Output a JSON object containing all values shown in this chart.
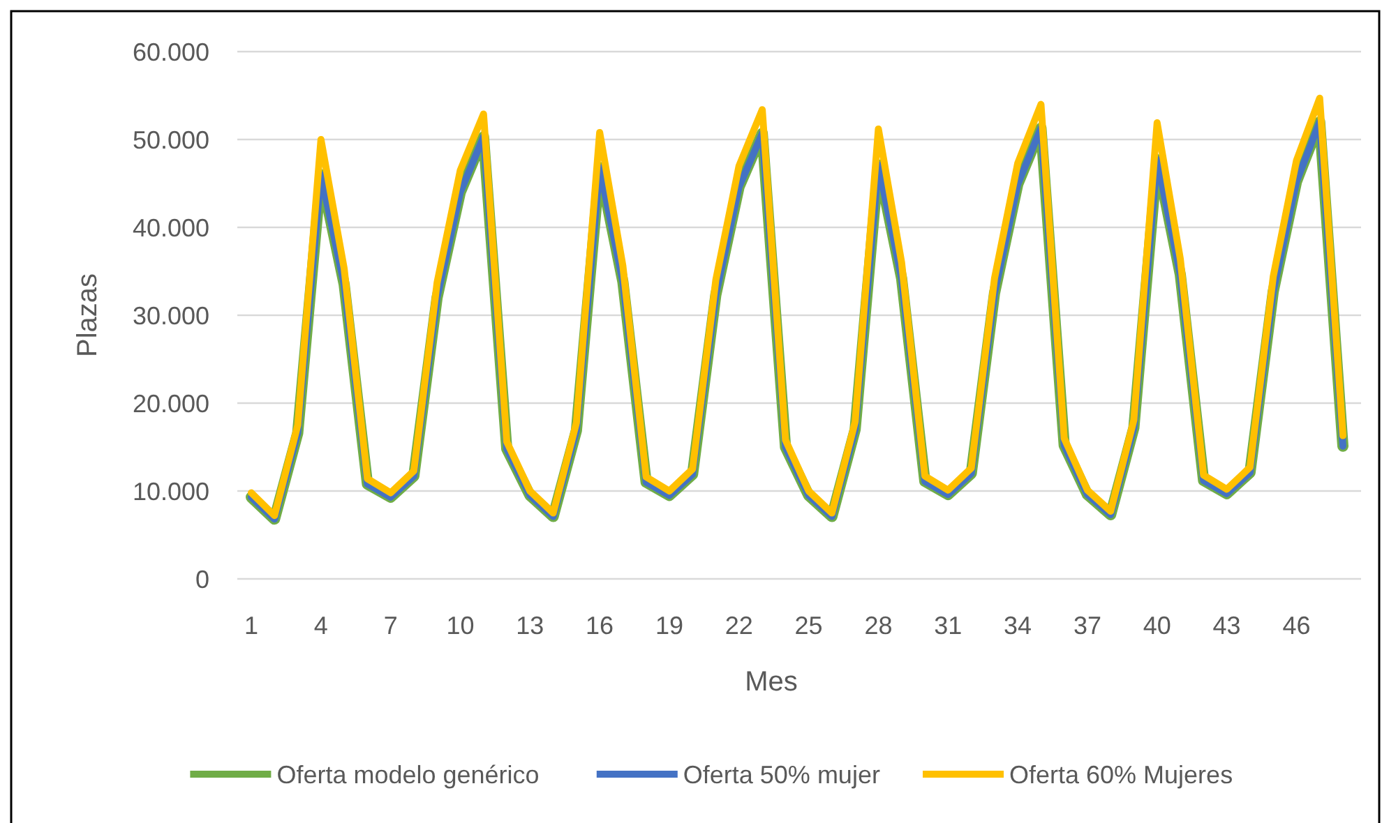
{
  "chart_data": {
    "type": "line",
    "xlabel": "Mes",
    "ylabel": "Plazas",
    "categories": [
      "1",
      null,
      null,
      "4",
      null,
      null,
      "7",
      null,
      null,
      "10",
      null,
      null,
      "13",
      null,
      null,
      "16",
      null,
      null,
      "19",
      null,
      null,
      "22",
      null,
      null,
      "25",
      null,
      null,
      "28",
      null,
      null,
      "31",
      null,
      null,
      "34",
      null,
      null,
      "37",
      null,
      null,
      "40",
      null,
      null,
      "43",
      null,
      null,
      "46",
      null,
      null
    ],
    "ylim": [
      0,
      60000
    ],
    "yticks": [
      {
        "value": 0,
        "label": "0"
      },
      {
        "value": 10000,
        "label": "10.000"
      },
      {
        "value": 20000,
        "label": "20.000"
      },
      {
        "value": 30000,
        "label": "30.000"
      },
      {
        "value": 40000,
        "label": "40.000"
      },
      {
        "value": 50000,
        "label": "50.000"
      },
      {
        "value": 60000,
        "label": "60.000"
      }
    ],
    "grid": "y",
    "legend": "bottom",
    "line_style": "solid",
    "marker": "none",
    "series": [
      {
        "name": "Oferta modelo genérico",
        "color": "#70ad47",
        "values": [
          9300,
          6800,
          16600,
          46000,
          33500,
          10800,
          9300,
          11700,
          32000,
          44000,
          50300,
          14800,
          9500,
          7100,
          16900,
          46800,
          33800,
          11000,
          9500,
          11900,
          32300,
          44600,
          50700,
          15000,
          9500,
          7100,
          17000,
          47100,
          34200,
          11100,
          9600,
          12000,
          32500,
          44900,
          51300,
          15200,
          9600,
          7300,
          17200,
          47700,
          34600,
          11200,
          9700,
          12100,
          32700,
          45200,
          52000,
          15100
        ]
      },
      {
        "name": "Oferta 50% mujer",
        "color": "#4472c4",
        "values": [
          9300,
          6800,
          16600,
          46000,
          33500,
          10800,
          9300,
          11700,
          32000,
          44000,
          50300,
          14800,
          9500,
          7100,
          16900,
          46800,
          33800,
          11000,
          9500,
          11900,
          32300,
          44600,
          50700,
          15000,
          9500,
          7100,
          17000,
          47100,
          34200,
          11100,
          9600,
          12000,
          32500,
          44900,
          51300,
          15200,
          9600,
          7300,
          17200,
          47700,
          34600,
          11200,
          9700,
          12100,
          32700,
          45200,
          52000,
          15100
        ]
      },
      {
        "name": "Oferta 60% Mujeres",
        "color": "#ffc000",
        "values": [
          9800,
          7200,
          17500,
          50000,
          35300,
          11400,
          9800,
          12300,
          33700,
          46500,
          52900,
          15600,
          10000,
          7500,
          17800,
          50800,
          35600,
          11600,
          10000,
          12500,
          34000,
          47000,
          53400,
          15800,
          10000,
          7500,
          17900,
          51200,
          36000,
          11700,
          10100,
          12600,
          34200,
          47300,
          54000,
          16000,
          10100,
          7700,
          18100,
          51900,
          36400,
          11800,
          10200,
          12700,
          34400,
          47600,
          54700,
          16300
        ]
      }
    ]
  }
}
